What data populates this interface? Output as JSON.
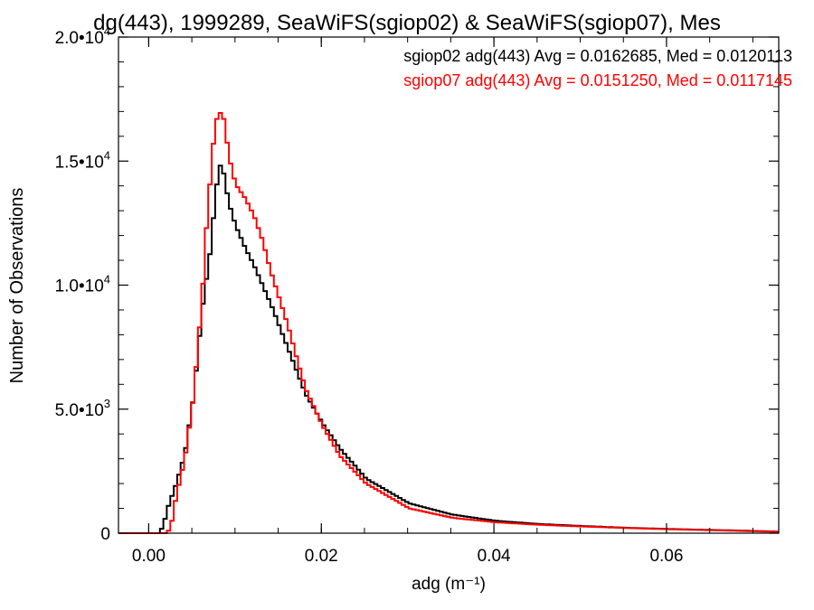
{
  "chart_data": {
    "type": "line",
    "title": "dg(443), 1999289, SeaWiFS(sgiop02) & SeaWiFS(sgiop07), Mes",
    "xlabel": "adg (m⁻¹)",
    "ylabel": "Number of Observations",
    "xlim": [
      -0.0035,
      0.073
    ],
    "ylim": [
      0,
      20000
    ],
    "x_ticks": [
      0.0,
      0.02,
      0.04,
      0.06
    ],
    "x_tick_labels": [
      "0.00",
      "0.02",
      "0.04",
      "0.06"
    ],
    "y_ticks": [
      0,
      5000,
      10000,
      15000,
      20000
    ],
    "y_tick_labels": [
      "0",
      "5.0•10",
      "1.0•10",
      "1.5•10",
      "2.0•10"
    ],
    "y_tick_exponents": [
      "",
      "3",
      "4",
      "4",
      "4"
    ],
    "series": [
      {
        "name": "sgiop02 adg(443) Avg = 0.0162685, Med = 0.0120113",
        "color": "#000000",
        "x": [
          -0.0035,
          0.001,
          0.0015,
          0.002,
          0.003,
          0.004,
          0.005,
          0.006,
          0.007,
          0.0075,
          0.008,
          0.0085,
          0.009,
          0.0095,
          0.01,
          0.011,
          0.012,
          0.013,
          0.014,
          0.015,
          0.016,
          0.017,
          0.018,
          0.02,
          0.022,
          0.025,
          0.03,
          0.035,
          0.04,
          0.045,
          0.05,
          0.055,
          0.06,
          0.065,
          0.07,
          0.073
        ],
        "y": [
          0,
          0,
          300,
          1000,
          2000,
          3200,
          5500,
          9000,
          11500,
          13500,
          14900,
          14500,
          13500,
          12800,
          12300,
          11500,
          10800,
          10000,
          9200,
          8300,
          7400,
          6500,
          5600,
          4400,
          3400,
          2200,
          1200,
          750,
          500,
          370,
          290,
          220,
          170,
          130,
          90,
          60
        ]
      },
      {
        "name": "sgiop07 adg(443) Avg = 0.0151250, Med = 0.0117145",
        "color": "#ff0000",
        "x": [
          -0.0035,
          0.002,
          0.0025,
          0.003,
          0.004,
          0.005,
          0.006,
          0.0065,
          0.007,
          0.0075,
          0.008,
          0.0085,
          0.009,
          0.0095,
          0.01,
          0.011,
          0.012,
          0.013,
          0.014,
          0.015,
          0.016,
          0.017,
          0.018,
          0.02,
          0.022,
          0.025,
          0.03,
          0.035,
          0.04,
          0.045,
          0.05,
          0.055,
          0.06,
          0.065,
          0.07,
          0.073
        ],
        "y": [
          0,
          0,
          500,
          1500,
          3000,
          5500,
          9500,
          12300,
          14500,
          16500,
          17000,
          16700,
          15500,
          14500,
          14000,
          13500,
          12800,
          11800,
          10500,
          9400,
          8300,
          7000,
          5800,
          4300,
          3100,
          2000,
          1000,
          620,
          440,
          340,
          270,
          210,
          160,
          120,
          80,
          50
        ]
      }
    ],
    "legend": "top-right",
    "grid": false
  }
}
